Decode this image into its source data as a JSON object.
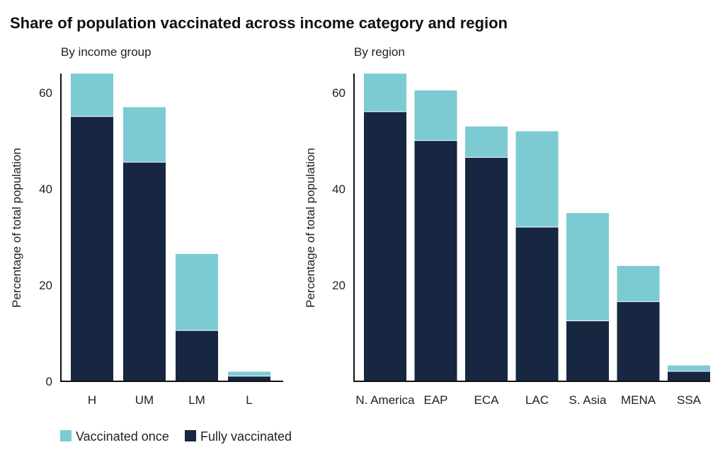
{
  "title": "Share of population vaccinated across income category and region",
  "colors": {
    "vaccinated_once": "#7ccad2",
    "fully_vaccinated": "#172641",
    "axis": "#111111"
  },
  "legend": [
    {
      "label": "Vaccinated once",
      "color": "#7ccad2"
    },
    {
      "label": "Fully vaccinated",
      "color": "#172641"
    }
  ],
  "chart_data": [
    {
      "type": "bar",
      "stacked": true,
      "subtitle": "By income group",
      "ylabel": "Percentage of total population",
      "ylim": [
        0,
        64
      ],
      "yticks": [
        0,
        20,
        40,
        60
      ],
      "categories": [
        "H",
        "UM",
        "LM",
        "L"
      ],
      "series": [
        {
          "name": "Fully vaccinated",
          "values": [
            55,
            45.5,
            10.5,
            1
          ]
        },
        {
          "name": "Vaccinated once",
          "values": [
            9,
            11.5,
            16,
            1
          ]
        }
      ],
      "legend_position": "bottom-left",
      "grid": false
    },
    {
      "type": "bar",
      "stacked": true,
      "subtitle": "By region",
      "ylabel": "Percentage of total population",
      "ylim": [
        0,
        64
      ],
      "yticks": [
        20,
        40,
        60
      ],
      "categories": [
        "N. America",
        "EAP",
        "ECA",
        "LAC",
        "S. Asia",
        "MENA",
        "SSA"
      ],
      "series": [
        {
          "name": "Fully vaccinated",
          "values": [
            56,
            50,
            46.5,
            32,
            12.5,
            16.5,
            2
          ]
        },
        {
          "name": "Vaccinated once",
          "values": [
            8,
            10.5,
            6.5,
            20,
            22.5,
            7.5,
            1.3
          ]
        }
      ],
      "legend_position": "bottom-left",
      "grid": false
    }
  ]
}
